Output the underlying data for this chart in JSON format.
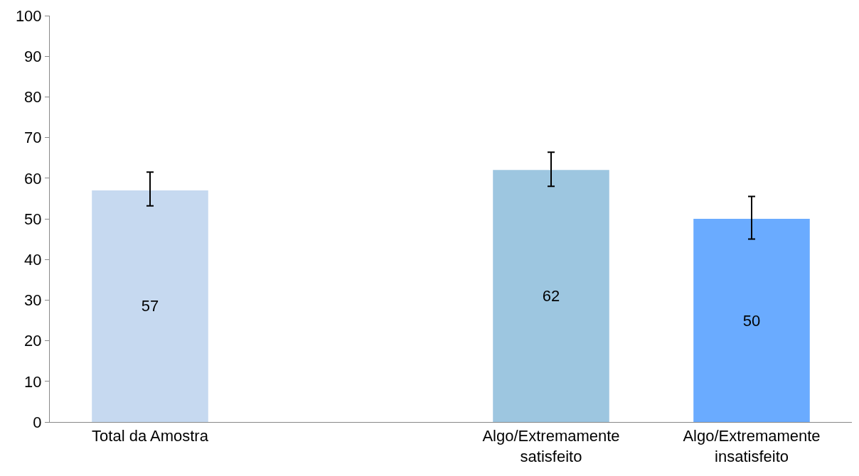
{
  "chart_data": {
    "type": "bar",
    "categories": [
      "Total da Amostra",
      null,
      "Algo/Extremamente satisfeito",
      "Algo/Extremamente insatisfeito"
    ],
    "values": [
      57,
      null,
      62,
      50
    ],
    "colors": [
      "#c6d9f0",
      "#c6d9f0",
      "#9dc6e0",
      "#6aabff"
    ],
    "errors": [
      [
        53.2,
        61.5
      ],
      null,
      [
        58.0,
        66.4
      ],
      [
        45.0,
        55.5
      ]
    ],
    "data_labels": true,
    "ylim": [
      0,
      100
    ],
    "yticks": [
      0,
      10,
      20,
      30,
      40,
      50,
      60,
      70,
      80,
      90,
      100
    ],
    "legend": false
  }
}
